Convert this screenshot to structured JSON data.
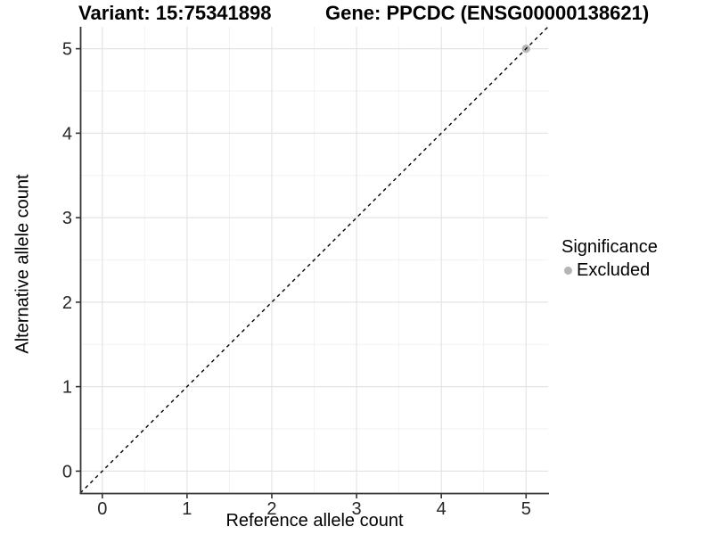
{
  "chart_data": {
    "type": "scatter",
    "title_left": "Variant: 15:75341898",
    "title_right": "Gene: PPCDC (ENSG00000138621)",
    "xlabel": "Reference allele count",
    "ylabel": "Alternative allele count",
    "xlim": [
      -0.25,
      5.26
    ],
    "ylim": [
      -0.26,
      5.26
    ],
    "x_ticks": [
      0,
      1,
      2,
      3,
      4,
      5
    ],
    "y_ticks": [
      0,
      1,
      2,
      3,
      4,
      5
    ],
    "x_minor_gridlines": [
      0.5,
      1.5,
      2.5,
      3.5,
      4.5
    ],
    "y_minor_gridlines": [
      0.5,
      1.5,
      2.5,
      3.5,
      4.5
    ],
    "grid": true,
    "legend": {
      "title": "Significance",
      "position": "right",
      "items": [
        {
          "label": "Excluded",
          "color": "#B5B5B5"
        }
      ]
    },
    "series": [
      {
        "name": "Excluded",
        "color": "#B5B5B5",
        "points": [
          {
            "x": 5,
            "y": 5
          }
        ]
      }
    ],
    "reference_line": {
      "type": "diagonal",
      "slope": 1,
      "intercept": 0,
      "style": "dashed",
      "color": "#000000"
    }
  },
  "style": {
    "grid_major": "#E4E4E4",
    "grid_minor": "#F2F2F2",
    "axis_line": "#333333",
    "tick_color": "#333333",
    "tick_label_color": "#262626"
  }
}
